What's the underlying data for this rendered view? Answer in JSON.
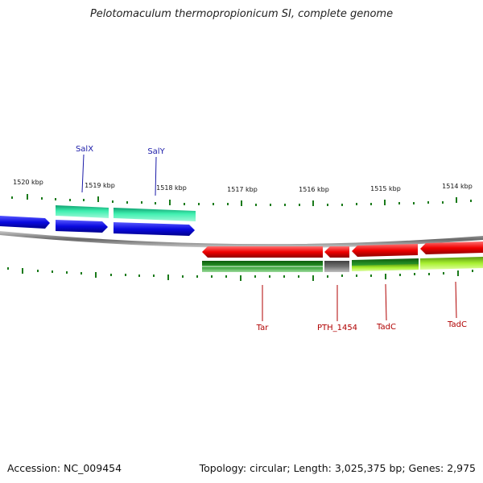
{
  "title": "Pelotomaculum thermopropionicum SI, complete genome",
  "footer": {
    "accession": "Accession: NC_009454",
    "summary": "Topology: circular; Length: 3,025,375 bp; Genes: 2,975"
  },
  "scale_labels": [
    "1520 kbp",
    "1519 kbp",
    "1518 kbp",
    "1517 kbp",
    "1516 kbp",
    "1515 kbp",
    "1514 kbp"
  ],
  "genes_top": [
    "SalX",
    "SalY"
  ],
  "genes_bottom": [
    "Tar",
    "PTH_1454",
    "TadC",
    "TadC"
  ],
  "colors": {
    "blue_cds": "#0a0ae0",
    "teal_gene": "#22e8a0",
    "red_cds": "#f00000",
    "green_gene": "#2a9a2a",
    "gray_gene": "#707070",
    "lime_gene": "#a8f030",
    "tick": "#1a7a1a",
    "backbone": "#8a8a8a"
  }
}
